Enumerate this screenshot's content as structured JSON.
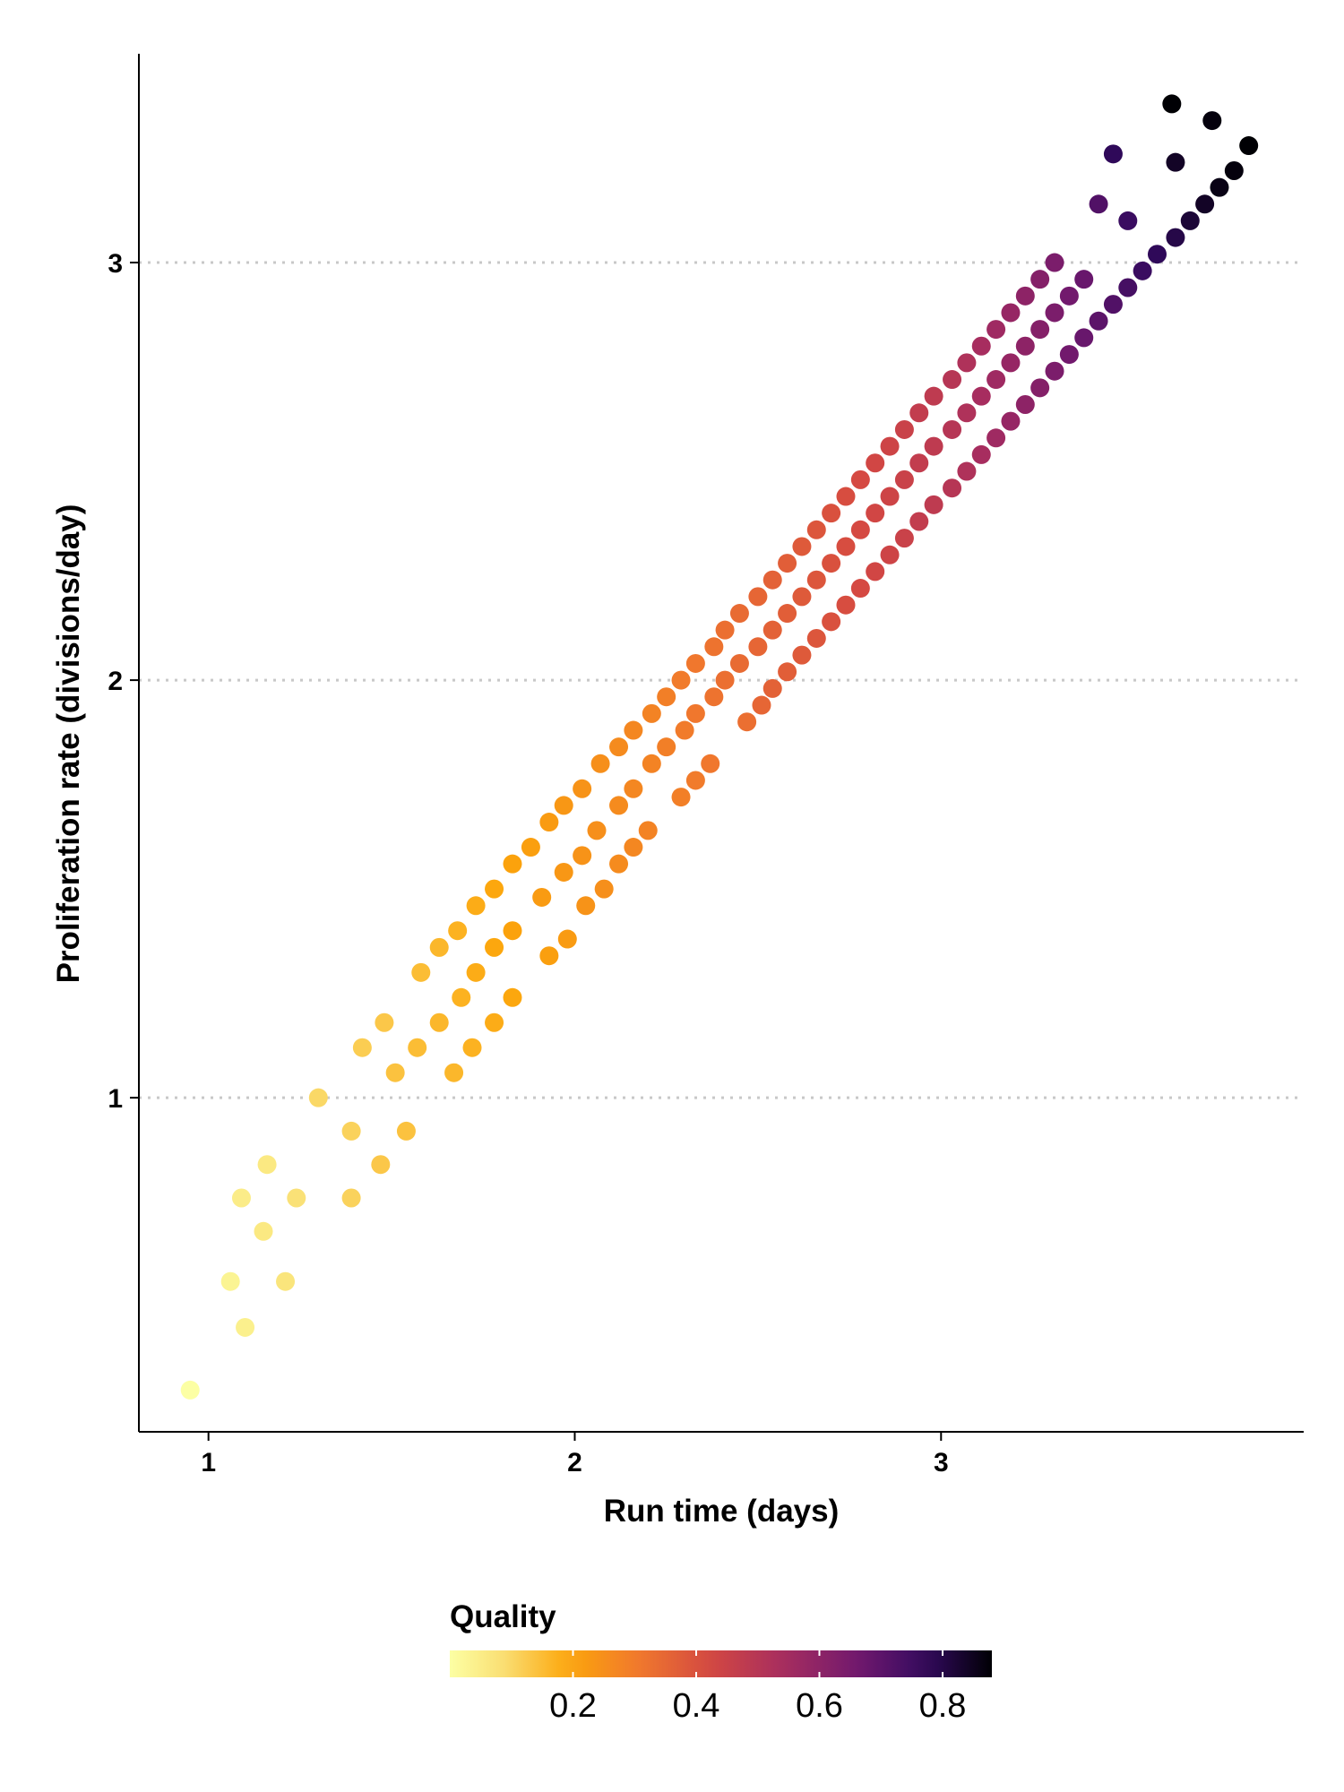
{
  "chart_data": {
    "type": "scatter",
    "xlabel": "Run time (days)",
    "ylabel": "Proliferation rate (divisions/day)",
    "xlim": [
      0.81,
      3.99
    ],
    "ylim": [
      0.2,
      3.5
    ],
    "x_ticks": [
      1,
      2,
      3
    ],
    "x_tick_labels": [
      "1",
      "2",
      "3"
    ],
    "y_ticks": [
      1,
      2,
      3
    ],
    "y_tick_labels": [
      "1",
      "2",
      "3"
    ],
    "grid": "horizontal dotted",
    "color_by": "Quality",
    "colorscale": "inferno-reversed",
    "colorbar": {
      "title": "Quality",
      "min": 0.0,
      "max": 0.88,
      "ticks": [
        0.2,
        0.4,
        0.6,
        0.8
      ],
      "tick_labels": [
        "0.2",
        "0.4",
        "0.6",
        "0.8"
      ],
      "placement": "bottom"
    },
    "points": [
      [
        0.95,
        0.3,
        0.0
      ],
      [
        1.06,
        0.56,
        0.03
      ],
      [
        1.1,
        0.45,
        0.04
      ],
      [
        1.09,
        0.76,
        0.05
      ],
      [
        1.16,
        0.84,
        0.06
      ],
      [
        1.15,
        0.68,
        0.06
      ],
      [
        1.21,
        0.56,
        0.07
      ],
      [
        1.24,
        0.76,
        0.08
      ],
      [
        1.3,
        1.0,
        0.1
      ],
      [
        1.39,
        0.92,
        0.11
      ],
      [
        1.39,
        0.76,
        0.11
      ],
      [
        1.42,
        1.12,
        0.12
      ],
      [
        1.48,
        1.18,
        0.13
      ],
      [
        1.47,
        0.84,
        0.13
      ],
      [
        1.51,
        1.06,
        0.14
      ],
      [
        1.54,
        0.92,
        0.14
      ],
      [
        1.58,
        1.3,
        0.15
      ],
      [
        1.57,
        1.12,
        0.15
      ],
      [
        1.63,
        1.36,
        0.16
      ],
      [
        1.63,
        1.18,
        0.16
      ],
      [
        1.67,
        1.06,
        0.16
      ],
      [
        1.68,
        1.4,
        0.17
      ],
      [
        1.69,
        1.24,
        0.17
      ],
      [
        1.73,
        1.46,
        0.18
      ],
      [
        1.73,
        1.3,
        0.18
      ],
      [
        1.72,
        1.12,
        0.17
      ],
      [
        1.78,
        1.5,
        0.19
      ],
      [
        1.78,
        1.36,
        0.19
      ],
      [
        1.78,
        1.18,
        0.18
      ],
      [
        1.83,
        1.56,
        0.2
      ],
      [
        1.83,
        1.4,
        0.2
      ],
      [
        1.83,
        1.24,
        0.19
      ],
      [
        1.88,
        1.6,
        0.21
      ],
      [
        1.91,
        1.48,
        0.22
      ],
      [
        1.93,
        1.66,
        0.22
      ],
      [
        1.93,
        1.34,
        0.21
      ],
      [
        1.97,
        1.7,
        0.23
      ],
      [
        1.97,
        1.54,
        0.23
      ],
      [
        1.98,
        1.38,
        0.22
      ],
      [
        2.02,
        1.74,
        0.24
      ],
      [
        2.02,
        1.58,
        0.24
      ],
      [
        2.03,
        1.46,
        0.24
      ],
      [
        2.07,
        1.8,
        0.25
      ],
      [
        2.06,
        1.64,
        0.25
      ],
      [
        2.08,
        1.5,
        0.25
      ],
      [
        2.12,
        1.84,
        0.26
      ],
      [
        2.12,
        1.7,
        0.26
      ],
      [
        2.12,
        1.56,
        0.26
      ],
      [
        2.16,
        1.88,
        0.27
      ],
      [
        2.16,
        1.74,
        0.27
      ],
      [
        2.16,
        1.6,
        0.27
      ],
      [
        2.21,
        1.92,
        0.28
      ],
      [
        2.21,
        1.8,
        0.28
      ],
      [
        2.2,
        1.64,
        0.28
      ],
      [
        2.25,
        1.96,
        0.29
      ],
      [
        2.25,
        1.84,
        0.29
      ],
      [
        2.29,
        1.72,
        0.29
      ],
      [
        2.29,
        2.0,
        0.3
      ],
      [
        2.3,
        1.88,
        0.3
      ],
      [
        2.33,
        1.76,
        0.3
      ],
      [
        2.33,
        2.04,
        0.31
      ],
      [
        2.33,
        1.92,
        0.31
      ],
      [
        2.38,
        2.08,
        0.32
      ],
      [
        2.38,
        1.96,
        0.32
      ],
      [
        2.37,
        1.8,
        0.31
      ],
      [
        2.41,
        2.12,
        0.33
      ],
      [
        2.41,
        2.0,
        0.33
      ],
      [
        2.45,
        2.16,
        0.34
      ],
      [
        2.45,
        2.04,
        0.34
      ],
      [
        2.47,
        1.9,
        0.33
      ],
      [
        2.5,
        2.2,
        0.35
      ],
      [
        2.5,
        2.08,
        0.35
      ],
      [
        2.51,
        1.94,
        0.35
      ],
      [
        2.54,
        2.24,
        0.36
      ],
      [
        2.54,
        2.12,
        0.36
      ],
      [
        2.54,
        1.98,
        0.36
      ],
      [
        2.58,
        2.28,
        0.37
      ],
      [
        2.58,
        2.16,
        0.37
      ],
      [
        2.58,
        2.02,
        0.37
      ],
      [
        2.62,
        2.32,
        0.38
      ],
      [
        2.62,
        2.2,
        0.38
      ],
      [
        2.62,
        2.06,
        0.38
      ],
      [
        2.66,
        2.36,
        0.39
      ],
      [
        2.66,
        2.24,
        0.39
      ],
      [
        2.66,
        2.1,
        0.39
      ],
      [
        2.7,
        2.4,
        0.4
      ],
      [
        2.7,
        2.28,
        0.4
      ],
      [
        2.7,
        2.14,
        0.4
      ],
      [
        2.74,
        2.44,
        0.41
      ],
      [
        2.74,
        2.32,
        0.41
      ],
      [
        2.74,
        2.18,
        0.41
      ],
      [
        2.78,
        2.48,
        0.42
      ],
      [
        2.78,
        2.36,
        0.42
      ],
      [
        2.78,
        2.22,
        0.42
      ],
      [
        2.82,
        2.52,
        0.43
      ],
      [
        2.82,
        2.4,
        0.43
      ],
      [
        2.82,
        2.26,
        0.43
      ],
      [
        2.86,
        2.56,
        0.44
      ],
      [
        2.86,
        2.44,
        0.44
      ],
      [
        2.86,
        2.3,
        0.44
      ],
      [
        2.9,
        2.6,
        0.45
      ],
      [
        2.9,
        2.48,
        0.45
      ],
      [
        2.9,
        2.34,
        0.45
      ],
      [
        2.94,
        2.64,
        0.47
      ],
      [
        2.94,
        2.52,
        0.47
      ],
      [
        2.94,
        2.38,
        0.47
      ],
      [
        2.98,
        2.68,
        0.48
      ],
      [
        2.98,
        2.56,
        0.48
      ],
      [
        2.98,
        2.42,
        0.48
      ],
      [
        3.03,
        2.72,
        0.5
      ],
      [
        3.03,
        2.6,
        0.5
      ],
      [
        3.03,
        2.46,
        0.5
      ],
      [
        3.07,
        2.76,
        0.52
      ],
      [
        3.07,
        2.64,
        0.52
      ],
      [
        3.07,
        2.5,
        0.52
      ],
      [
        3.11,
        2.8,
        0.54
      ],
      [
        3.11,
        2.68,
        0.54
      ],
      [
        3.11,
        2.54,
        0.54
      ],
      [
        3.15,
        2.84,
        0.56
      ],
      [
        3.15,
        2.72,
        0.56
      ],
      [
        3.15,
        2.58,
        0.56
      ],
      [
        3.19,
        2.88,
        0.58
      ],
      [
        3.19,
        2.76,
        0.58
      ],
      [
        3.19,
        2.62,
        0.58
      ],
      [
        3.23,
        2.92,
        0.6
      ],
      [
        3.23,
        2.8,
        0.6
      ],
      [
        3.23,
        2.66,
        0.6
      ],
      [
        3.27,
        2.96,
        0.62
      ],
      [
        3.27,
        2.84,
        0.62
      ],
      [
        3.27,
        2.7,
        0.62
      ],
      [
        3.31,
        3.0,
        0.64
      ],
      [
        3.31,
        2.88,
        0.64
      ],
      [
        3.31,
        2.74,
        0.64
      ],
      [
        3.35,
        2.92,
        0.66
      ],
      [
        3.35,
        2.78,
        0.66
      ],
      [
        3.39,
        2.96,
        0.68
      ],
      [
        3.39,
        2.82,
        0.68
      ],
      [
        3.43,
        3.14,
        0.72
      ],
      [
        3.43,
        2.86,
        0.7
      ],
      [
        3.47,
        3.26,
        0.78
      ],
      [
        3.47,
        2.9,
        0.72
      ],
      [
        3.51,
        3.1,
        0.76
      ],
      [
        3.51,
        2.94,
        0.74
      ],
      [
        3.55,
        2.98,
        0.76
      ],
      [
        3.59,
        3.02,
        0.78
      ],
      [
        3.64,
        3.24,
        0.84
      ],
      [
        3.64,
        3.06,
        0.8
      ],
      [
        3.68,
        3.1,
        0.82
      ],
      [
        3.72,
        3.14,
        0.84
      ],
      [
        3.76,
        3.18,
        0.86
      ],
      [
        3.74,
        3.34,
        0.87
      ],
      [
        3.8,
        3.22,
        0.87
      ],
      [
        3.84,
        3.28,
        0.88
      ],
      [
        3.63,
        3.38,
        0.88
      ]
    ]
  }
}
